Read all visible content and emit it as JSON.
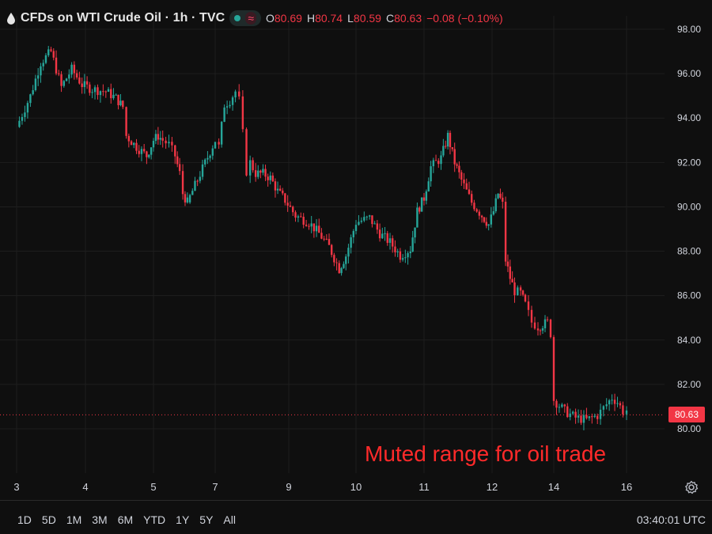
{
  "header": {
    "title": "CFDs on WTI Crude Oil · 1h · TVC",
    "ohlc": {
      "o_label": "O",
      "o_value": "80.69",
      "h_label": "H",
      "h_value": "80.74",
      "l_label": "L",
      "l_value": "80.59",
      "c_label": "C",
      "c_value": "80.63",
      "change": "−0.08 (−0.10%)"
    }
  },
  "price_tag": "80.63",
  "annotation": "Muted range for oil trade",
  "timeframes": [
    "1D",
    "5D",
    "1M",
    "3M",
    "6M",
    "YTD",
    "1Y",
    "5Y",
    "All"
  ],
  "clock": "03:40:01 UTC",
  "colors": {
    "up": "#26a69a",
    "down": "#f23645",
    "annotation": "#ff2a2a",
    "background": "#0f0f0f"
  },
  "icons": {
    "symbol": "oil-drop-icon",
    "settings": "gear-icon"
  },
  "chart_data": {
    "type": "candlestick",
    "y_ticks": [
      "98.00",
      "96.00",
      "94.00",
      "92.00",
      "90.00",
      "88.00",
      "86.00",
      "84.00",
      "82.00",
      "80.00"
    ],
    "x_ticks": [
      "3",
      "4",
      "5",
      "7",
      "9",
      "10",
      "11",
      "12",
      "14",
      "16"
    ],
    "ylim": [
      79.0,
      98.5
    ],
    "grid": true,
    "last_price": 80.63,
    "close_path": [
      [
        3.0,
        93.6
      ],
      [
        3.2,
        95.0
      ],
      [
        3.35,
        96.5
      ],
      [
        3.5,
        97.0
      ],
      [
        3.65,
        95.4
      ],
      [
        3.8,
        96.2
      ],
      [
        3.95,
        95.5
      ],
      [
        4.1,
        95.3
      ],
      [
        4.3,
        95.2
      ],
      [
        4.45,
        94.9
      ],
      [
        4.55,
        94.5
      ],
      [
        4.6,
        93.2
      ],
      [
        4.75,
        92.7
      ],
      [
        4.9,
        92.3
      ],
      [
        5.0,
        93.0
      ],
      [
        5.15,
        93.2
      ],
      [
        5.3,
        93.0
      ],
      [
        5.5,
        92.8
      ],
      [
        5.7,
        92.3
      ],
      [
        5.85,
        91.5
      ],
      [
        5.95,
        90.6
      ],
      [
        6.1,
        90.2
      ],
      [
        7.0,
        93.0
      ],
      [
        7.1,
        92.7
      ],
      [
        7.25,
        94.6
      ],
      [
        7.4,
        94.8
      ],
      [
        7.55,
        95.2
      ],
      [
        7.65,
        94.8
      ],
      [
        7.75,
        93.3
      ],
      [
        7.85,
        91.6
      ],
      [
        7.95,
        92.0
      ],
      [
        8.1,
        91.5
      ],
      [
        8.3,
        91.5
      ],
      [
        8.5,
        91.3
      ],
      [
        8.7,
        90.7
      ],
      [
        8.9,
        90.3
      ],
      [
        9.1,
        89.6
      ],
      [
        9.3,
        89.3
      ],
      [
        9.45,
        88.8
      ],
      [
        9.6,
        88.2
      ],
      [
        9.75,
        87.2
      ],
      [
        9.85,
        87.8
      ],
      [
        10.0,
        89.3
      ],
      [
        10.2,
        89.5
      ],
      [
        10.35,
        88.8
      ],
      [
        10.5,
        88.4
      ],
      [
        10.65,
        87.8
      ],
      [
        10.8,
        88.1
      ],
      [
        10.9,
        89.8
      ],
      [
        11.0,
        90.4
      ],
      [
        11.1,
        91.8
      ],
      [
        11.25,
        92.2
      ],
      [
        11.35,
        93.2
      ],
      [
        11.45,
        92.0
      ],
      [
        11.55,
        91.2
      ],
      [
        11.7,
        90.2
      ],
      [
        11.85,
        89.6
      ],
      [
        11.95,
        89.2
      ],
      [
        12.05,
        89.8
      ],
      [
        12.2,
        90.6
      ],
      [
        12.35,
        90.1
      ],
      [
        12.45,
        87.6
      ],
      [
        12.6,
        86.8
      ],
      [
        12.75,
        86.2
      ],
      [
        12.95,
        86.1
      ],
      [
        13.1,
        85.6
      ],
      [
        13.3,
        84.8
      ],
      [
        13.5,
        84.6
      ],
      [
        13.8,
        84.8
      ],
      [
        13.9,
        84.3
      ],
      [
        14.0,
        81.3
      ],
      [
        14.3,
        80.8
      ],
      [
        14.6,
        80.5
      ],
      [
        14.9,
        80.4
      ],
      [
        15.2,
        80.6
      ],
      [
        15.45,
        81.1
      ],
      [
        15.6,
        81.4
      ],
      [
        15.75,
        81.2
      ],
      [
        15.9,
        80.8
      ],
      [
        16.0,
        80.7
      ],
      [
        16.1,
        80.63
      ]
    ]
  }
}
